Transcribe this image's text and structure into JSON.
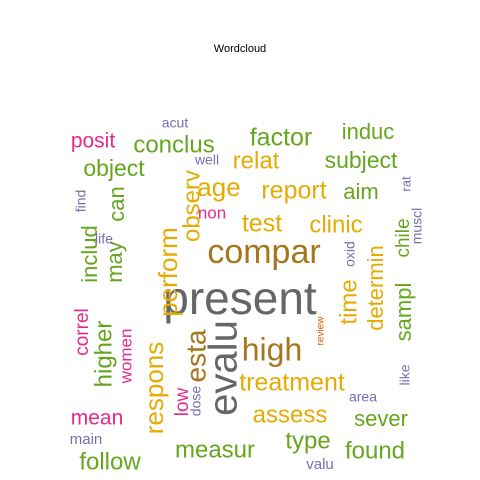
{
  "chart_data": {
    "type": "wordcloud",
    "title": "Wordcloud",
    "colors": {
      "gray": "#666666",
      "brown": "#a6761d",
      "gold": "#e6ab02",
      "green": "#66a61e",
      "pink": "#e7298a",
      "purple": "#7570b3",
      "orange": "#d95f02"
    },
    "words": [
      {
        "text": "present",
        "color": "gray"
      },
      {
        "text": "evalu",
        "color": "gray"
      },
      {
        "text": "compar",
        "color": "brown"
      },
      {
        "text": "high",
        "color": "brown"
      },
      {
        "text": "esta",
        "color": "brown"
      },
      {
        "text": "perform",
        "color": "gold"
      },
      {
        "text": "respons",
        "color": "gold"
      },
      {
        "text": "treatment",
        "color": "gold"
      },
      {
        "text": "assess",
        "color": "gold"
      },
      {
        "text": "report",
        "color": "gold"
      },
      {
        "text": "age",
        "color": "gold"
      },
      {
        "text": "relat",
        "color": "gold"
      },
      {
        "text": "test",
        "color": "gold"
      },
      {
        "text": "clinic",
        "color": "gold"
      },
      {
        "text": "observ",
        "color": "gold"
      },
      {
        "text": "time",
        "color": "gold"
      },
      {
        "text": "determin",
        "color": "gold"
      },
      {
        "text": "factor",
        "color": "green"
      },
      {
        "text": "conclus",
        "color": "green"
      },
      {
        "text": "object",
        "color": "green"
      },
      {
        "text": "subject",
        "color": "green"
      },
      {
        "text": "induc",
        "color": "green"
      },
      {
        "text": "aim",
        "color": "green"
      },
      {
        "text": "measur",
        "color": "green"
      },
      {
        "text": "type",
        "color": "green"
      },
      {
        "text": "found",
        "color": "green"
      },
      {
        "text": "follow",
        "color": "green"
      },
      {
        "text": "sampl",
        "color": "green"
      },
      {
        "text": "sever",
        "color": "green"
      },
      {
        "text": "can",
        "color": "green"
      },
      {
        "text": "may",
        "color": "green"
      },
      {
        "text": "includ",
        "color": "green"
      },
      {
        "text": "higher",
        "color": "green"
      },
      {
        "text": "chile",
        "color": "green"
      },
      {
        "text": "posit",
        "color": "pink"
      },
      {
        "text": "mean",
        "color": "pink"
      },
      {
        "text": "correl",
        "color": "pink"
      },
      {
        "text": "women",
        "color": "pink"
      },
      {
        "text": "non",
        "color": "pink"
      },
      {
        "text": "low",
        "color": "pink"
      },
      {
        "text": "acut",
        "color": "purple"
      },
      {
        "text": "well",
        "color": "purple"
      },
      {
        "text": "find",
        "color": "purple"
      },
      {
        "text": "life",
        "color": "purple"
      },
      {
        "text": "oxid",
        "color": "purple"
      },
      {
        "text": "rat",
        "color": "purple"
      },
      {
        "text": "muscl",
        "color": "purple"
      },
      {
        "text": "dose",
        "color": "purple"
      },
      {
        "text": "main",
        "color": "purple"
      },
      {
        "text": "valu",
        "color": "purple"
      },
      {
        "text": "area",
        "color": "purple"
      },
      {
        "text": "like",
        "color": "purple"
      },
      {
        "text": "review",
        "color": "orange"
      }
    ]
  }
}
